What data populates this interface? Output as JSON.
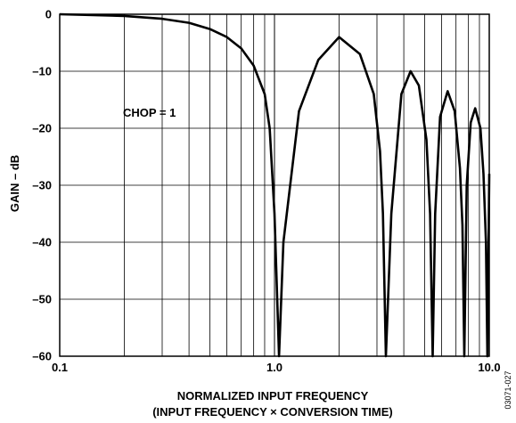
{
  "chart_data": {
    "type": "line",
    "title": "",
    "xlabel_line1": "NORMALIZED INPUT FREQUENCY",
    "xlabel_line2": "(INPUT FREQUENCY × CONVERSION TIME)",
    "ylabel": "GAIN – dB",
    "xscale": "log",
    "xlim": [
      0.1,
      10.0
    ],
    "ylim": [
      -60,
      0
    ],
    "x_tick_labels": [
      "0.1",
      "1.0",
      "10.0"
    ],
    "y_ticks": [
      0,
      -10,
      -20,
      -30,
      -40,
      -50,
      -60
    ],
    "y_tick_labels": [
      "0",
      "–10",
      "–20",
      "–30",
      "–40",
      "–50",
      "–60"
    ],
    "grid": true,
    "annotation": "CHOP = 1",
    "figure_id": "03071-027",
    "series": [
      {
        "x": [
          0.1,
          0.2,
          0.3,
          0.4,
          0.5,
          0.6,
          0.7,
          0.8,
          0.9,
          0.95,
          1.0,
          1.05,
          1.1,
          1.3,
          1.6,
          2.0,
          2.5,
          2.9,
          3.1,
          3.2,
          3.3,
          3.5,
          3.9,
          4.3,
          4.7,
          5.1,
          5.3,
          5.45,
          5.6,
          5.9,
          6.4,
          6.9,
          7.3,
          7.5,
          7.65,
          7.85,
          8.2,
          8.6,
          9.1,
          9.4,
          9.65,
          9.8,
          10.0
        ],
        "y": [
          0,
          -0.3,
          -0.8,
          -1.5,
          -2.6,
          -4.0,
          -6.0,
          -9.0,
          -14.0,
          -20.0,
          -35.0,
          -60.0,
          -40.0,
          -17.0,
          -8.0,
          -4.0,
          -7.0,
          -14.0,
          -24.0,
          -35.0,
          -60.0,
          -35.0,
          -14.0,
          -10.0,
          -12.5,
          -22.0,
          -35.0,
          -60.0,
          -35.0,
          -18.0,
          -13.5,
          -17.0,
          -27.0,
          -37.0,
          -60.0,
          -30.0,
          -19.0,
          -16.5,
          -20.0,
          -28.0,
          -40.0,
          -60.0,
          -28.0
        ]
      }
    ]
  }
}
